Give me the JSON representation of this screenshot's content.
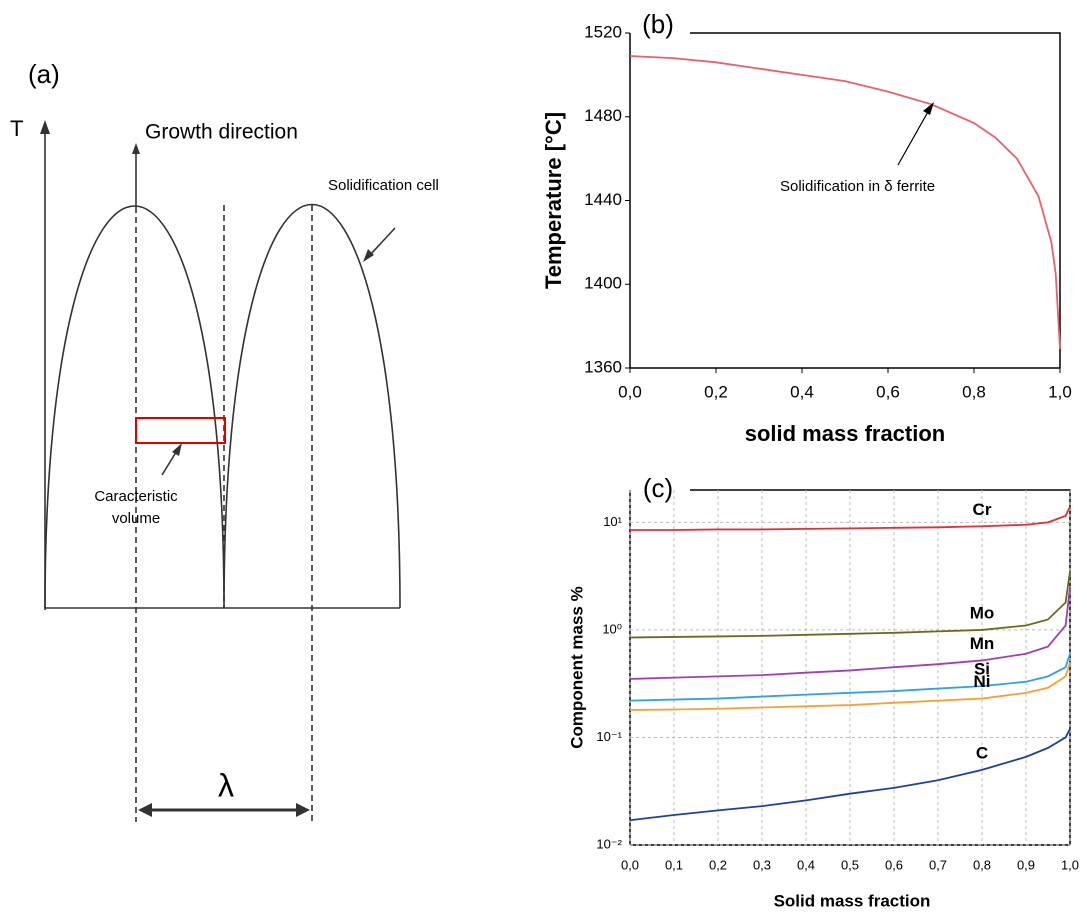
{
  "diagram": {
    "panel_label": "(a)",
    "axis_label": "T",
    "growth_direction": "Growth direction",
    "cell_label": "Solidification cell",
    "volume_label": [
      "Caracteristic",
      "volume"
    ],
    "spacing_label": "λ"
  },
  "chart_data": [
    {
      "type": "line",
      "panel_label": "(b)",
      "x_label": "solid mass fraction",
      "y_label": "Temperature [°C]",
      "annotation": "Solidification in δ ferrite",
      "x": [
        0,
        0.1,
        0.2,
        0.3,
        0.4,
        0.5,
        0.6,
        0.7,
        0.8,
        0.85,
        0.9,
        0.95,
        0.98,
        0.99,
        1.0
      ],
      "series": [
        {
          "color": "#e8606e",
          "values": [
            1509,
            1508,
            1506,
            1503,
            1500,
            1497,
            1492,
            1486,
            1477,
            1470,
            1460,
            1442,
            1420,
            1405,
            1369
          ]
        }
      ],
      "xlim": [
        0,
        1
      ],
      "ylim": [
        1360,
        1520
      ],
      "xticks": [
        {
          "value": 0,
          "label": "0,0"
        },
        {
          "value": 0.2,
          "label": "0,2"
        },
        {
          "value": 0.4,
          "label": "0,4"
        },
        {
          "value": 0.6,
          "label": "0,6"
        },
        {
          "value": 0.8,
          "label": "0,8"
        },
        {
          "value": 1.0,
          "label": "1,0"
        }
      ],
      "yticks": [
        1360,
        1400,
        1440,
        1480,
        1520
      ],
      "grid": false,
      "log_scale": false
    },
    {
      "type": "line",
      "panel_label": "(c)",
      "x_label": "Solid mass fraction",
      "y_label": "Component mass %",
      "x": [
        0,
        0.1,
        0.2,
        0.3,
        0.4,
        0.5,
        0.6,
        0.7,
        0.8,
        0.9,
        0.95,
        0.99,
        1.0
      ],
      "series": [
        {
          "name": "Cr",
          "color": "#e0303a",
          "values": [
            8.5,
            8.5,
            8.6,
            8.6,
            8.7,
            8.8,
            8.9,
            9.0,
            9.2,
            9.5,
            10,
            11.5,
            14
          ]
        },
        {
          "name": "Mo",
          "color": "#6b6a1c",
          "values": [
            0.85,
            0.86,
            0.87,
            0.88,
            0.9,
            0.92,
            0.94,
            0.97,
            1.0,
            1.1,
            1.25,
            1.8,
            3.5
          ]
        },
        {
          "name": "Mn",
          "color": "#a040b0",
          "values": [
            0.35,
            0.36,
            0.37,
            0.38,
            0.4,
            0.42,
            0.45,
            0.48,
            0.52,
            0.6,
            0.7,
            1.1,
            2.5
          ]
        },
        {
          "name": "Si",
          "color": "#30a0e8",
          "values": [
            0.22,
            0.225,
            0.23,
            0.24,
            0.25,
            0.26,
            0.27,
            0.285,
            0.3,
            0.33,
            0.37,
            0.45,
            0.6
          ]
        },
        {
          "name": "Ni",
          "color": "#f5a030",
          "values": [
            0.18,
            0.182,
            0.185,
            0.19,
            0.195,
            0.2,
            0.21,
            0.22,
            0.23,
            0.26,
            0.29,
            0.37,
            0.5
          ]
        },
        {
          "name": "C",
          "color": "#2040a0",
          "values": [
            0.017,
            0.019,
            0.021,
            0.023,
            0.026,
            0.03,
            0.034,
            0.04,
            0.05,
            0.066,
            0.08,
            0.1,
            0.12
          ]
        }
      ],
      "xlim": [
        0,
        1
      ],
      "ylim": [
        0.01,
        20
      ],
      "xticks": [
        {
          "value": 0,
          "label": "0,0"
        },
        {
          "value": 0.1,
          "label": "0,1"
        },
        {
          "value": 0.2,
          "label": "0,2"
        },
        {
          "value": 0.3,
          "label": "0,3"
        },
        {
          "value": 0.4,
          "label": "0,4"
        },
        {
          "value": 0.5,
          "label": "0,5"
        },
        {
          "value": 0.6,
          "label": "0,6"
        },
        {
          "value": 0.7,
          "label": "0,7"
        },
        {
          "value": 0.8,
          "label": "0,8"
        },
        {
          "value": 0.9,
          "label": "0,9"
        },
        {
          "value": 1.0,
          "label": "1,0"
        }
      ],
      "yticks": [
        {
          "value": 0.01,
          "label": "10⁻²"
        },
        {
          "value": 0.1,
          "label": "10⁻¹"
        },
        {
          "value": 1,
          "label": "10⁰"
        },
        {
          "value": 10,
          "label": "10¹"
        }
      ],
      "grid": true,
      "log_scale": true
    }
  ]
}
